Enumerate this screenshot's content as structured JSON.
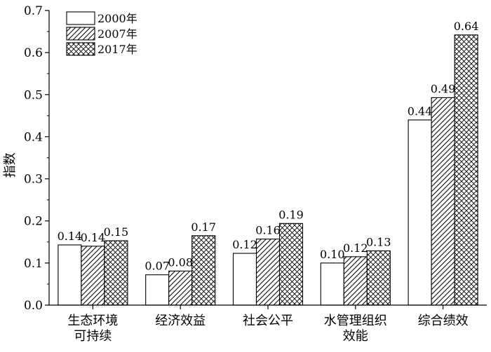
{
  "chart_data": {
    "type": "bar",
    "ylabel": "指数",
    "ylim": [
      0,
      0.7
    ],
    "yticks": [
      "0.0",
      "0.1",
      "0.2",
      "0.3",
      "0.4",
      "0.5",
      "0.6",
      "0.7"
    ],
    "categories": [
      [
        "生态环境",
        "可持续"
      ],
      [
        "经济效益"
      ],
      [
        "社会公平"
      ],
      [
        "水管理组织",
        "效能"
      ],
      [
        "综合绩效"
      ]
    ],
    "series": [
      {
        "name": "2000年",
        "values": [
          0.143,
          0.072,
          0.123,
          0.1,
          0.44
        ],
        "labels": [
          "0.14",
          "0.07",
          "0.12",
          "0.10",
          "0.44"
        ]
      },
      {
        "name": "2007年",
        "values": [
          0.14,
          0.081,
          0.157,
          0.115,
          0.493
        ],
        "labels": [
          "0.14",
          "0.08",
          "0.16",
          "0.12",
          "0.49"
        ]
      },
      {
        "name": "2017年",
        "values": [
          0.153,
          0.165,
          0.194,
          0.129,
          0.642
        ],
        "labels": [
          "0.15",
          "0.17",
          "0.19",
          "0.13",
          "0.64"
        ]
      }
    ],
    "legend_position": "top-left",
    "grid": false
  }
}
